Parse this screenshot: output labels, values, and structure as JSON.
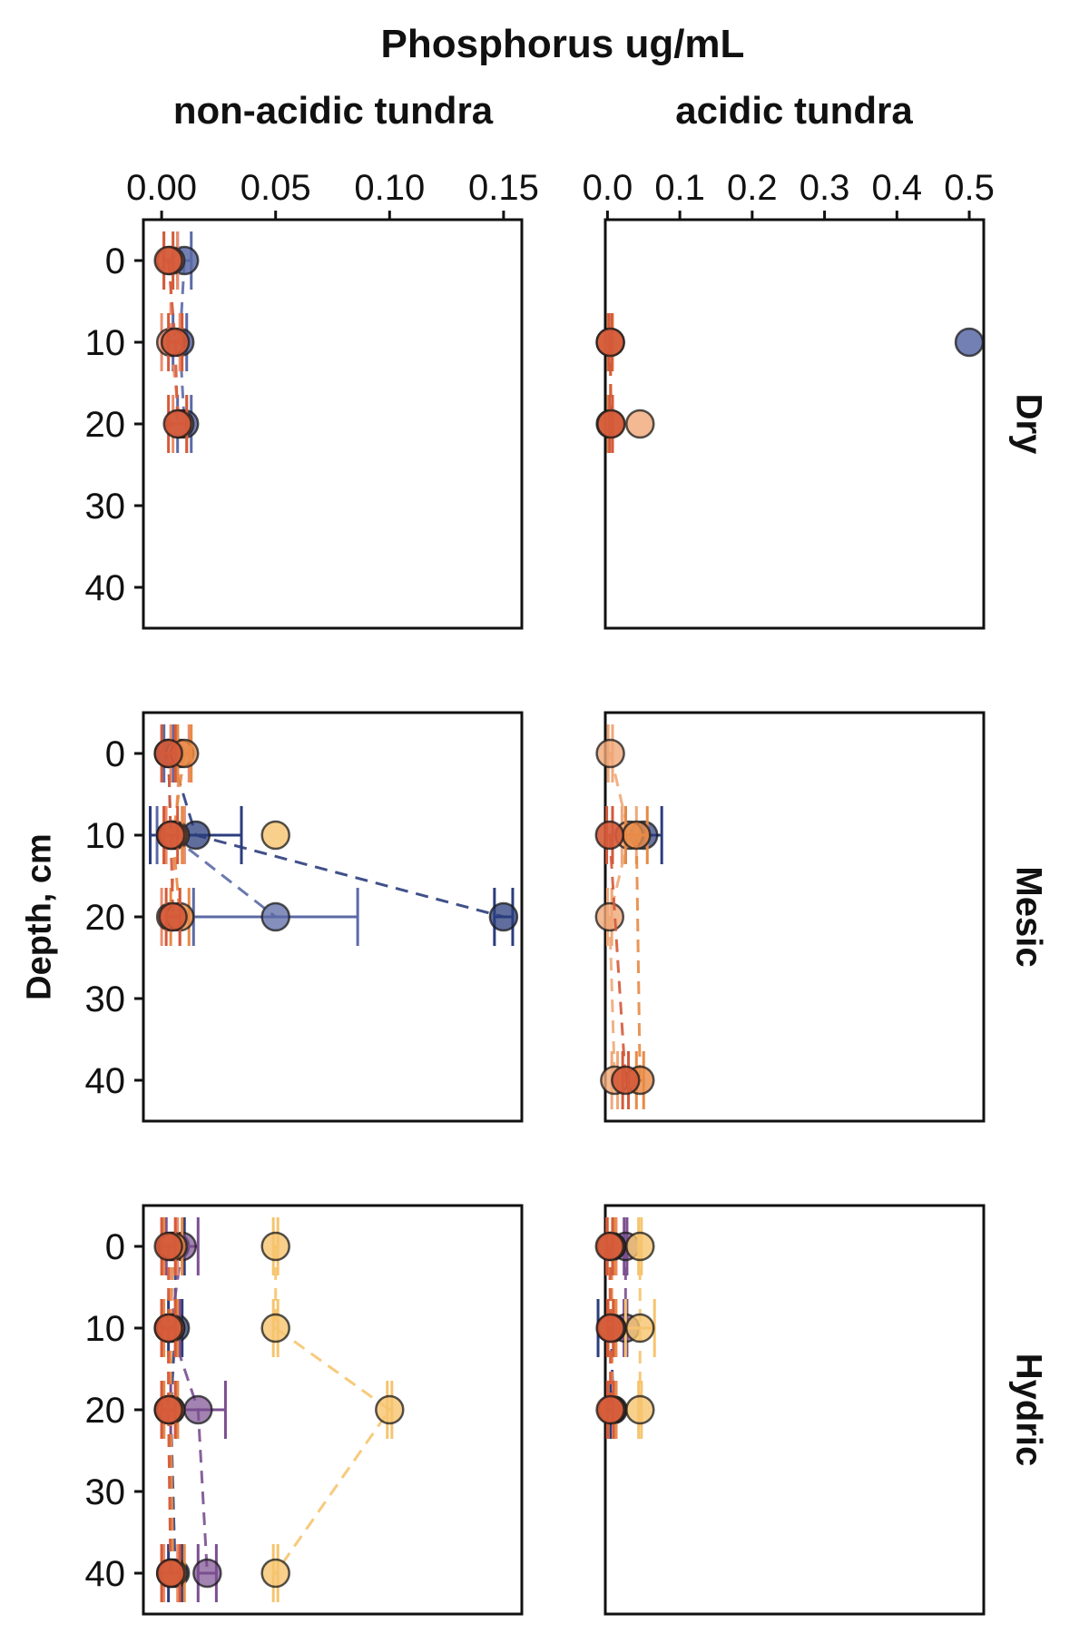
{
  "chart_data": {
    "type": "scatter",
    "title": "Phosphorus ug/mL",
    "ylabel": "Depth, cm",
    "y_reversed": true,
    "ylim": [
      45,
      -5
    ],
    "y_ticks": [
      "0",
      "10",
      "20",
      "30",
      "40"
    ],
    "columns": [
      {
        "label": "non-acidic tundra",
        "xlim": [
          -0.008,
          0.158
        ],
        "x_ticks": [
          "0.00",
          "0.05",
          "0.10",
          "0.15"
        ]
      },
      {
        "label": "acidic tundra",
        "xlim": [
          -0.003,
          0.52
        ],
        "x_ticks": [
          "0.0",
          "0.1",
          "0.2",
          "0.3",
          "0.4",
          "0.5"
        ]
      }
    ],
    "rows": [
      {
        "label": "Dry"
      },
      {
        "label": "Mesic"
      },
      {
        "label": "Hydric"
      }
    ],
    "colors": {
      "navy": "#2b3d7d",
      "slate": "#5b6aa6",
      "purple": "#7b4f90",
      "red": "#d45a3a",
      "salmon": "#eb8c6c",
      "orange": "#e88a45",
      "gold": "#f1ad42",
      "lightgold": "#f6c46e",
      "peach": "#f0a878"
    },
    "panels": [
      {
        "row": 0,
        "col": 0,
        "series": [
          {
            "color": "#5b6aa6",
            "alpha": 0.85,
            "points": [
              [
                0.01,
                0
              ],
              [
                0.008,
                10
              ],
              [
                0.01,
                20
              ]
            ],
            "err": [
              0.003,
              0.003,
              0.003
            ]
          },
          {
            "color": "#eb8c6c",
            "alpha": 0.75,
            "points": [
              [
                0.004,
                0
              ],
              [
                0.004,
                10
              ],
              [
                0.008,
                20
              ]
            ],
            "err": [
              0.003,
              0.004,
              0.003
            ]
          },
          {
            "color": "#d45a3a",
            "alpha": 0.9,
            "points": [
              [
                0.003,
                0
              ],
              [
                0.006,
                10
              ],
              [
                0.007,
                20
              ]
            ],
            "err": [
              0.002,
              0.003,
              0.004
            ]
          }
        ]
      },
      {
        "row": 0,
        "col": 1,
        "series": [
          {
            "color": "#5b6aa6",
            "alpha": 0.85,
            "points": [
              [
                0.5,
                10
              ]
            ],
            "err": [
              0
            ]
          },
          {
            "color": "#f0a878",
            "alpha": 0.8,
            "points": [
              [
                0.045,
                20
              ]
            ],
            "err": [
              0
            ]
          },
          {
            "color": "#e88a45",
            "alpha": 0.8,
            "points": [
              [
                0.004,
                10
              ],
              [
                0.004,
                20
              ]
            ],
            "err": [
              0.003,
              0.003
            ]
          },
          {
            "color": "#d45a3a",
            "alpha": 0.9,
            "points": [
              [
                0.004,
                10
              ],
              [
                0.005,
                20
              ]
            ],
            "err": [
              0.002,
              0.002
            ]
          }
        ]
      },
      {
        "row": 1,
        "col": 0,
        "series": [
          {
            "color": "#2b3d7d",
            "alpha": 0.75,
            "points": [
              [
                0.004,
                0
              ],
              [
                0.015,
                10
              ],
              [
                0.15,
                20
              ]
            ],
            "err": [
              0.003,
              0.02,
              0.004
            ]
          },
          {
            "color": "#5b6aa6",
            "alpha": 0.75,
            "points": [
              [
                0.003,
                0
              ],
              [
                0.004,
                10
              ],
              [
                0.05,
                20
              ]
            ],
            "err": [
              0.002,
              0.006,
              0.036
            ]
          },
          {
            "color": "#f6c46e",
            "alpha": 0.8,
            "points": [
              [
                0.05,
                10
              ]
            ],
            "err": [
              0
            ]
          },
          {
            "color": "#eb8c6c",
            "alpha": 0.8,
            "points": [
              [
                0.008,
                0
              ],
              [
                0.006,
                10
              ],
              [
                0.004,
                20
              ]
            ],
            "err": [
              0.004,
              0.004,
              0.004
            ]
          },
          {
            "color": "#e88a45",
            "alpha": 0.8,
            "points": [
              [
                0.01,
                0
              ],
              [
                0.005,
                10
              ],
              [
                0.008,
                20
              ]
            ],
            "err": [
              0.003,
              0.004,
              0.004
            ]
          },
          {
            "color": "#d45a3a",
            "alpha": 0.9,
            "points": [
              [
                0.003,
                0
              ],
              [
                0.004,
                10
              ],
              [
                0.005,
                20
              ]
            ],
            "err": [
              0.003,
              0.003,
              0.003
            ]
          }
        ]
      },
      {
        "row": 1,
        "col": 1,
        "series": [
          {
            "color": "#2b3d7d",
            "alpha": 0.7,
            "points": [
              [
                0.05,
                10
              ]
            ],
            "err": [
              0.025
            ]
          },
          {
            "color": "#f0a878",
            "alpha": 0.8,
            "points": [
              [
                0.004,
                0
              ],
              [
                0.03,
                10
              ],
              [
                0.003,
                20
              ],
              [
                0.01,
                40
              ]
            ],
            "err": [
              0.003,
              0.01,
              0.003,
              0.004
            ]
          },
          {
            "color": "#e88a45",
            "alpha": 0.8,
            "points": [
              [
                0.04,
                10
              ],
              [
                0.045,
                40
              ]
            ],
            "err": [
              0.015,
              0.005
            ]
          },
          {
            "color": "#d45a3a",
            "alpha": 0.9,
            "points": [
              [
                0.003,
                10
              ],
              [
                0.025,
                40
              ]
            ],
            "err": [
              0.004,
              0.004
            ]
          }
        ]
      },
      {
        "row": 2,
        "col": 0,
        "series": [
          {
            "color": "#2b3d7d",
            "alpha": 0.75,
            "points": [
              [
                0.006,
                0
              ],
              [
                0.006,
                10
              ],
              [
                0.004,
                20
              ],
              [
                0.006,
                40
              ]
            ],
            "err": [
              0.004,
              0.003,
              0.003,
              0.003
            ]
          },
          {
            "color": "#7b4f90",
            "alpha": 0.7,
            "points": [
              [
                0.009,
                0
              ],
              [
                0.004,
                10
              ],
              [
                0.016,
                20
              ],
              [
                0.02,
                40
              ]
            ],
            "err": [
              0.007,
              0.004,
              0.012,
              0.004
            ]
          },
          {
            "color": "#f6c46e",
            "alpha": 0.8,
            "points": [
              [
                0.05,
                0
              ],
              [
                0.05,
                10
              ],
              [
                0.1,
                20
              ],
              [
                0.05,
                40
              ]
            ],
            "err": [
              0.001,
              0.001,
              0.001,
              0.001
            ]
          },
          {
            "color": "#eb8c6c",
            "alpha": 0.8,
            "points": [
              [
                0.004,
                0
              ],
              [
                0.003,
                10
              ],
              [
                0.003,
                20
              ],
              [
                0.004,
                40
              ]
            ],
            "err": [
              0.003,
              0.003,
              0.003,
              0.003
            ]
          },
          {
            "color": "#e88a45",
            "alpha": 0.8,
            "points": [
              [
                0.005,
                0
              ],
              [
                0.004,
                10
              ],
              [
                0.004,
                20
              ],
              [
                0.005,
                40
              ]
            ],
            "err": [
              0.004,
              0.003,
              0.003,
              0.005
            ]
          },
          {
            "color": "#d45a3a",
            "alpha": 0.9,
            "points": [
              [
                0.003,
                0
              ],
              [
                0.003,
                10
              ],
              [
                0.003,
                20
              ],
              [
                0.004,
                40
              ]
            ],
            "err": [
              0.003,
              0.003,
              0.003,
              0.004
            ]
          }
        ]
      },
      {
        "row": 2,
        "col": 1,
        "series": [
          {
            "color": "#2b3d7d",
            "alpha": 0.75,
            "points": [
              [
                0.005,
                10
              ],
              [
                0.008,
                20
              ]
            ],
            "err": [
              0.018,
              0.004
            ]
          },
          {
            "color": "#7b4f90",
            "alpha": 0.7,
            "points": [
              [
                0.025,
                0
              ],
              [
                0.025,
                10
              ]
            ],
            "err": [
              0.002,
              0.002
            ]
          },
          {
            "color": "#f6c46e",
            "alpha": 0.8,
            "points": [
              [
                0.045,
                0
              ],
              [
                0.045,
                10
              ],
              [
                0.045,
                20
              ]
            ],
            "err": [
              0.002,
              0.02,
              0.002
            ]
          },
          {
            "color": "#eb8c6c",
            "alpha": 0.8,
            "points": [
              [
                0.006,
                0
              ],
              [
                0.006,
                10
              ],
              [
                0.006,
                20
              ]
            ],
            "err": [
              0.006,
              0.006,
              0.006
            ]
          },
          {
            "color": "#e88a45",
            "alpha": 0.8,
            "points": [
              [
                0.005,
                0
              ],
              [
                0.006,
                10
              ],
              [
                0.006,
                20
              ]
            ],
            "err": [
              0.005,
              0.005,
              0.005
            ]
          },
          {
            "color": "#d45a3a",
            "alpha": 0.9,
            "points": [
              [
                0.003,
                0
              ],
              [
                0.004,
                10
              ],
              [
                0.004,
                20
              ]
            ],
            "err": [
              0.004,
              0.004,
              0.004
            ]
          }
        ]
      }
    ]
  }
}
